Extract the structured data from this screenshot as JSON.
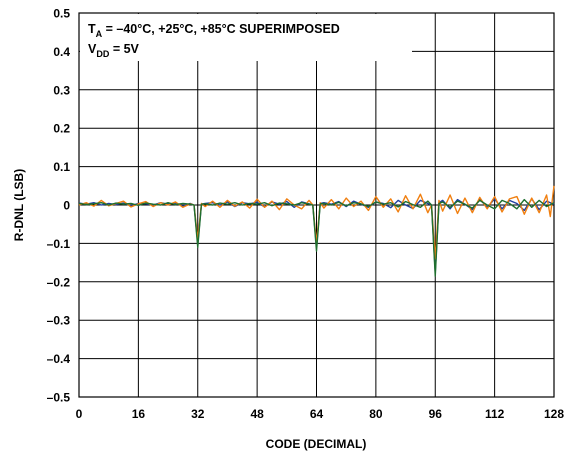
{
  "chart_data": {
    "type": "line",
    "xlabel": "CODE (DECIMAL)",
    "ylabel": "R-DNL (LSB)",
    "xlim": [
      0,
      128
    ],
    "ylim": [
      -0.5,
      0.5
    ],
    "x_ticks": [
      0,
      16,
      32,
      48,
      64,
      80,
      96,
      112,
      128
    ],
    "y_ticks": [
      0.5,
      0.4,
      0.3,
      0.2,
      0.1,
      0,
      -0.1,
      -0.2,
      -0.3,
      -0.4,
      -0.5
    ],
    "x_tick_labels": [
      "0",
      "16",
      "32",
      "48",
      "64",
      "80",
      "96",
      "112",
      "128"
    ],
    "y_tick_labels": [
      "0.5",
      "0.4",
      "0.3",
      "0.2",
      "0.1",
      "0",
      "–0.1",
      "–0.2",
      "–0.3",
      "–0.4",
      "–0.5"
    ],
    "grid": true,
    "annotation": {
      "line1_main": "T",
      "line1_sub": "A",
      "line1_rest": " = –40°C, +25°C, +85°C SUPERIMPOSED",
      "line2_main": "V",
      "line2_sub": "DD",
      "line2_rest": " = 5V"
    },
    "series": [
      {
        "color": "#1f3f9f",
        "x": [
          0,
          2,
          4,
          6,
          8,
          10,
          12,
          14,
          16,
          18,
          20,
          22,
          24,
          26,
          28,
          30,
          31,
          32,
          33,
          34,
          36,
          38,
          40,
          42,
          44,
          46,
          48,
          50,
          52,
          54,
          56,
          58,
          60,
          62,
          63,
          64,
          65,
          66,
          68,
          70,
          72,
          74,
          76,
          78,
          80,
          82,
          84,
          86,
          88,
          90,
          92,
          94,
          95,
          96,
          97,
          98,
          100,
          102,
          104,
          106,
          108,
          110,
          112,
          114,
          116,
          118,
          120,
          122,
          124,
          126,
          128
        ],
        "y": [
          0.005,
          0.002,
          0.006,
          0.0,
          0.004,
          0.001,
          0.005,
          -0.002,
          0.004,
          0.003,
          0.0,
          0.006,
          0.002,
          0.005,
          -0.003,
          0.004,
          0.0,
          -0.1,
          0.002,
          0.004,
          0.006,
          0.0,
          0.008,
          -0.004,
          0.006,
          0.003,
          0.007,
          -0.005,
          0.008,
          0.002,
          0.009,
          -0.006,
          0.008,
          0.003,
          0.0,
          -0.11,
          0.004,
          0.006,
          0.002,
          0.009,
          -0.004,
          0.01,
          0.002,
          -0.006,
          0.008,
          0.004,
          -0.007,
          0.012,
          0.0,
          -0.009,
          0.012,
          0.004,
          0.0,
          -0.175,
          0.006,
          0.012,
          -0.01,
          0.014,
          0.002,
          -0.012,
          0.015,
          -0.006,
          0.016,
          -0.01,
          0.012,
          0.004,
          -0.014,
          0.016,
          -0.012,
          0.01,
          0.002
        ]
      },
      {
        "color": "#f07f10",
        "x": [
          0,
          2,
          4,
          6,
          8,
          10,
          12,
          14,
          16,
          18,
          20,
          22,
          24,
          26,
          28,
          30,
          31,
          32,
          33,
          34,
          36,
          38,
          40,
          42,
          44,
          46,
          48,
          50,
          52,
          54,
          56,
          58,
          60,
          62,
          63,
          64,
          65,
          66,
          68,
          70,
          72,
          74,
          76,
          78,
          80,
          82,
          84,
          86,
          88,
          90,
          92,
          94,
          95,
          96,
          97,
          98,
          100,
          102,
          104,
          106,
          108,
          110,
          112,
          114,
          116,
          118,
          120,
          122,
          124,
          126,
          127,
          128
        ],
        "y": [
          0.0,
          0.006,
          -0.003,
          0.012,
          -0.002,
          0.004,
          0.01,
          -0.005,
          0.003,
          0.009,
          -0.004,
          0.006,
          0.0,
          0.008,
          -0.006,
          0.003,
          0.0,
          -0.09,
          0.004,
          -0.004,
          0.01,
          -0.006,
          0.012,
          -0.003,
          0.008,
          -0.008,
          0.015,
          -0.006,
          0.01,
          -0.012,
          0.016,
          0.0,
          -0.01,
          0.012,
          0.0,
          -0.1,
          0.006,
          -0.008,
          0.014,
          -0.01,
          0.018,
          -0.004,
          0.01,
          -0.014,
          0.022,
          -0.006,
          0.016,
          -0.018,
          0.024,
          -0.01,
          0.028,
          -0.02,
          0.0,
          -0.14,
          0.012,
          -0.016,
          0.026,
          -0.022,
          0.018,
          -0.02,
          0.02,
          -0.01,
          0.022,
          -0.018,
          0.016,
          0.022,
          -0.024,
          0.018,
          -0.02,
          0.026,
          -0.03,
          0.05
        ]
      },
      {
        "color": "#1f6f2f",
        "x": [
          0,
          2,
          4,
          6,
          8,
          10,
          12,
          14,
          16,
          18,
          20,
          22,
          24,
          26,
          28,
          30,
          31,
          32,
          33,
          34,
          36,
          38,
          40,
          42,
          44,
          46,
          48,
          50,
          52,
          54,
          56,
          58,
          60,
          62,
          63,
          64,
          65,
          66,
          68,
          70,
          72,
          74,
          76,
          78,
          80,
          82,
          84,
          86,
          88,
          90,
          92,
          94,
          95,
          96,
          97,
          98,
          100,
          102,
          104,
          106,
          108,
          110,
          112,
          114,
          116,
          118,
          120,
          122,
          124,
          126,
          128
        ],
        "y": [
          0.004,
          0.001,
          0.003,
          0.006,
          0.0,
          0.005,
          0.002,
          0.004,
          -0.001,
          0.005,
          0.002,
          0.0,
          0.006,
          0.001,
          0.004,
          0.002,
          0.0,
          -0.11,
          0.002,
          0.003,
          0.0,
          0.005,
          0.002,
          0.006,
          0.0,
          0.004,
          0.002,
          0.006,
          -0.002,
          0.005,
          0.003,
          0.0,
          0.006,
          0.002,
          0.0,
          -0.12,
          0.003,
          0.004,
          0.0,
          0.007,
          -0.002,
          0.006,
          0.003,
          -0.004,
          0.008,
          0.002,
          0.006,
          -0.005,
          0.009,
          0.001,
          -0.006,
          0.01,
          0.0,
          -0.185,
          0.004,
          0.008,
          -0.006,
          0.01,
          0.002,
          -0.008,
          0.012,
          0.0,
          -0.01,
          0.012,
          0.004,
          -0.01,
          0.014,
          -0.006,
          0.012,
          -0.004,
          0.006
        ]
      }
    ]
  }
}
